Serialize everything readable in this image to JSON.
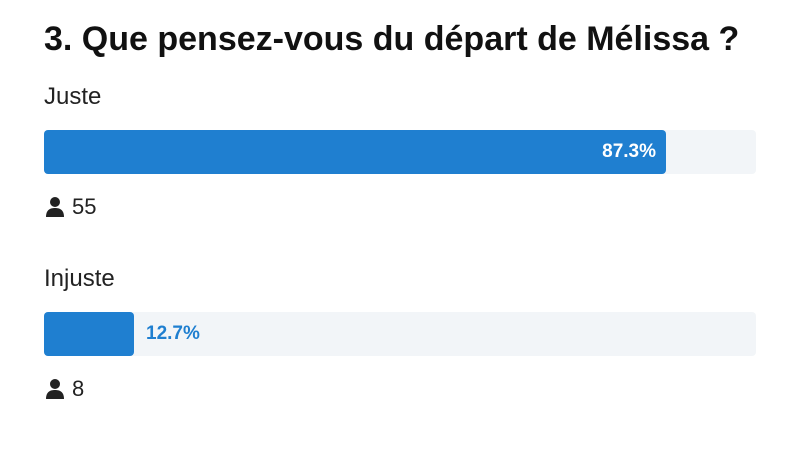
{
  "question": {
    "title": "3. Que pensez-vous du départ de Mélissa ?"
  },
  "options": [
    {
      "label": "Juste",
      "percent_label": "87.3%",
      "fraction": 0.873,
      "votes": "55",
      "votes_icon": "user-icon"
    },
    {
      "label": "Injuste",
      "percent_label": "12.7%",
      "fraction": 0.127,
      "votes": "8",
      "votes_icon": "user-icon"
    }
  ],
  "colors": {
    "bar_fill": "#1f7fd0",
    "bar_track": "#f2f5f8"
  }
}
